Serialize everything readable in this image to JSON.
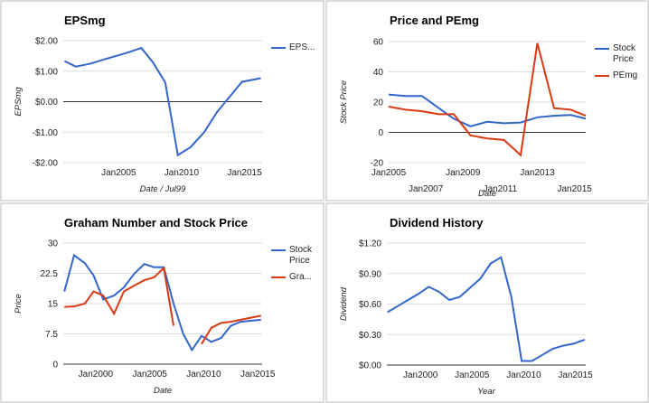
{
  "chart_data": [
    {
      "type": "line",
      "title": "EPSmg",
      "x_label": "Date / Jul99",
      "y_label": "EPSmg",
      "x": [
        2000.7,
        2001.6,
        2002.8,
        2003.8,
        2004.8,
        2005.8,
        2006.8,
        2007.7,
        2008.7,
        2009.7,
        2010.7,
        2011.8,
        2012.8,
        2013.8,
        2014.8,
        2016.3
      ],
      "series": [
        {
          "name": "EPS...",
          "color": "#3366cc",
          "values": [
            1.33,
            1.15,
            1.25,
            1.38,
            1.5,
            1.62,
            1.76,
            1.3,
            0.63,
            -1.75,
            -1.5,
            -1.0,
            -0.35,
            0.15,
            0.65,
            0.77
          ]
        }
      ],
      "xlim": [
        2000.6,
        2016.4
      ],
      "xticks": [
        {
          "value": 2005,
          "label": "Jan2005"
        },
        {
          "value": 2010,
          "label": "Jan2010"
        },
        {
          "value": 2015,
          "label": "Jan2015"
        }
      ],
      "ylim": [
        -2,
        2
      ],
      "yticks": [
        {
          "value": -2,
          "label": "-$2.00"
        },
        {
          "value": -1,
          "label": "-$1.00"
        },
        {
          "value": 0,
          "label": "$0.00"
        },
        {
          "value": 1,
          "label": "$1.00"
        },
        {
          "value": 2,
          "label": "$2.00"
        }
      ],
      "grid": true
    },
    {
      "type": "line",
      "title": "Price and PEmg",
      "x_label": "Date",
      "y_label": "Stock Price",
      "x": [
        2005,
        2005.9,
        2006.8,
        2007.7,
        2008.5,
        2009.4,
        2010.3,
        2011.2,
        2012.1,
        2013,
        2013.9,
        2014.8,
        2015.6
      ],
      "series": [
        {
          "name": "Stock Price",
          "color": "#3366cc",
          "values": [
            25,
            24,
            24,
            16,
            9,
            4,
            7,
            6,
            6.5,
            10,
            11,
            11.5,
            9
          ]
        },
        {
          "name": "PEmg",
          "color": "#dc3912",
          "values": [
            17,
            15,
            14,
            12,
            12,
            -2,
            -4,
            -5,
            -15,
            59,
            16,
            15,
            11
          ]
        }
      ],
      "xlim": [
        2005,
        2015.6
      ],
      "xticks": [
        {
          "value": 2005,
          "label": "Jan2005"
        },
        {
          "value": 2007,
          "label": "Jan2007"
        },
        {
          "value": 2009,
          "label": "Jan2009"
        },
        {
          "value": 2011,
          "label": "Jan2011"
        },
        {
          "value": 2013,
          "label": "Jan2013"
        },
        {
          "value": 2015,
          "label": "Jan2015"
        }
      ],
      "ylim": [
        -20,
        60
      ],
      "yticks": [
        -20,
        0,
        20,
        40,
        60
      ],
      "grid": true
    },
    {
      "type": "line",
      "title": "Graham Number and Stock Price",
      "x_label": "Date",
      "y_label": "Price",
      "x": [
        1997.1,
        1998,
        1999,
        1999.8,
        2000.7,
        2001.7,
        2002.6,
        2003.6,
        2004.5,
        2005.4,
        2006.3,
        2007.2,
        2008.1,
        2008.9,
        2009.8,
        2010.7,
        2011.6,
        2012.5,
        2013.4,
        2015.3
      ],
      "series": [
        {
          "name": "Stock Price",
          "color": "#3366cc",
          "values": [
            18,
            27,
            25,
            22,
            16,
            17,
            19,
            22.5,
            24.8,
            24,
            24,
            15,
            7.5,
            3.5,
            7,
            5.5,
            6.5,
            9.5,
            10.5,
            11
          ]
        },
        {
          "name": "Gra...",
          "color": "#dc3912",
          "values": [
            14.2,
            14.3,
            15,
            18,
            17,
            12.5,
            18,
            19.5,
            20.8,
            21.5,
            23.8,
            9.5,
            null,
            null,
            5,
            9,
            10.2,
            10.5,
            11,
            12
          ]
        }
      ],
      "xlim": [
        1997,
        2015.4
      ],
      "xticks": [
        {
          "value": 2000,
          "label": "Jan2000"
        },
        {
          "value": 2005,
          "label": "Jan2005"
        },
        {
          "value": 2010,
          "label": "Jan2010"
        },
        {
          "value": 2015,
          "label": "Jan2015"
        }
      ],
      "ylim": [
        0,
        30
      ],
      "yticks": [
        0,
        7.5,
        15,
        22.5,
        30
      ],
      "grid": true
    },
    {
      "type": "line",
      "title": "Dividend History",
      "x_label": "Year",
      "y_label": "Dividend",
      "x": [
        1996.8,
        1997.8,
        1998.8,
        1999.8,
        2000.8,
        2001.8,
        2002.8,
        2003.8,
        2004.8,
        2005.8,
        2006.8,
        2007.8,
        2008.8,
        2009.8,
        2010.8,
        2011.8,
        2012.8,
        2013.8,
        2014.8,
        2015.9
      ],
      "series": [
        {
          "name": "Dividend",
          "color": "#3366cc",
          "values": [
            0.52,
            0.58,
            0.64,
            0.7,
            0.77,
            0.72,
            0.64,
            0.67,
            0.76,
            0.85,
            1.0,
            1.06,
            0.67,
            0.04,
            0.04,
            0.1,
            0.16,
            0.19,
            0.21,
            0.25
          ]
        }
      ],
      "xlim": [
        1996.75,
        2016
      ],
      "xticks": [
        {
          "value": 2000,
          "label": "Jan2000"
        },
        {
          "value": 2005,
          "label": "Jan2005"
        },
        {
          "value": 2010,
          "label": "Jan2010"
        },
        {
          "value": 2015,
          "label": "Jan2015"
        }
      ],
      "ylim": [
        0,
        1.2
      ],
      "yticks": [
        {
          "value": 0,
          "label": "$0.00"
        },
        {
          "value": 0.3,
          "label": "$0.30"
        },
        {
          "value": 0.6,
          "label": "$0.60"
        },
        {
          "value": 0.9,
          "label": "$0.90"
        },
        {
          "value": 1.2,
          "label": "$1.20"
        }
      ],
      "grid": true,
      "legend": false
    }
  ]
}
